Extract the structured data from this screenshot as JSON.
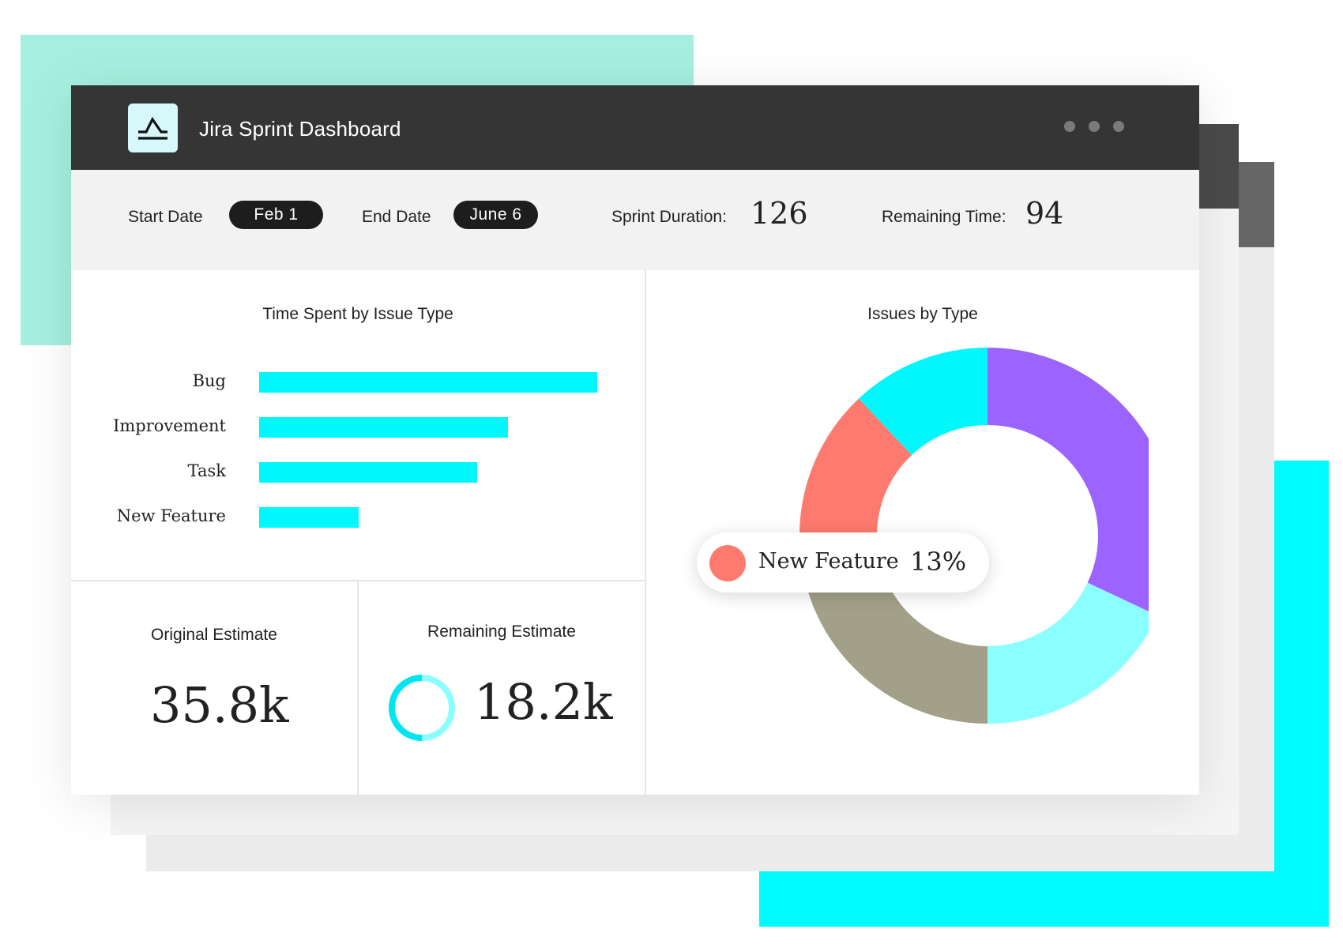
{
  "app": {
    "title": "Jira Sprint Dashboard",
    "logo_icon": "step-chart-icon",
    "window_controls": [
      "dot",
      "dot",
      "dot"
    ]
  },
  "sprint": {
    "start_label": "Start Date",
    "start_value": "Feb  1",
    "end_label": "End Date",
    "end_value": "June  6",
    "duration_label": "Sprint Duration:",
    "duration_value": "126",
    "remaining_label": "Remaining Time:",
    "remaining_value": "94"
  },
  "time_spent": {
    "title": "Time Spent by Issue Type",
    "chart_data": {
      "type": "bar",
      "orientation": "horizontal",
      "title": "Time Spent by Issue Type",
      "categories": [
        "Bug",
        "Improvement",
        "Task",
        "New Feature"
      ],
      "values": [
        100,
        73.5,
        64.5,
        29.5
      ],
      "xlim": [
        0,
        100
      ],
      "grid": false,
      "color": "#00f8fc"
    }
  },
  "estimates": {
    "original_title": "Original Estimate",
    "original_value": "35.8k",
    "remaining_title": "Remaining Estimate",
    "remaining_value": "18.2k",
    "remaining_ring_icon": "progress-ring-icon"
  },
  "issues_by_type": {
    "title": "Issues by Type",
    "chart_data": {
      "type": "pie",
      "donut": true,
      "title": "Issues by Type",
      "slices": [
        {
          "value": 32,
          "color": "#9d63ff"
        },
        {
          "value": 18,
          "color": "#8bfeff"
        },
        {
          "value": 25,
          "color": "#a2a088"
        },
        {
          "label": "New Feature",
          "value": 13,
          "color": "#fe7a6e"
        },
        {
          "value": 12,
          "color": "#00f8fc"
        }
      ]
    },
    "tooltip": {
      "label": "New Feature",
      "value": "13%",
      "color": "#fe7a6e"
    }
  }
}
